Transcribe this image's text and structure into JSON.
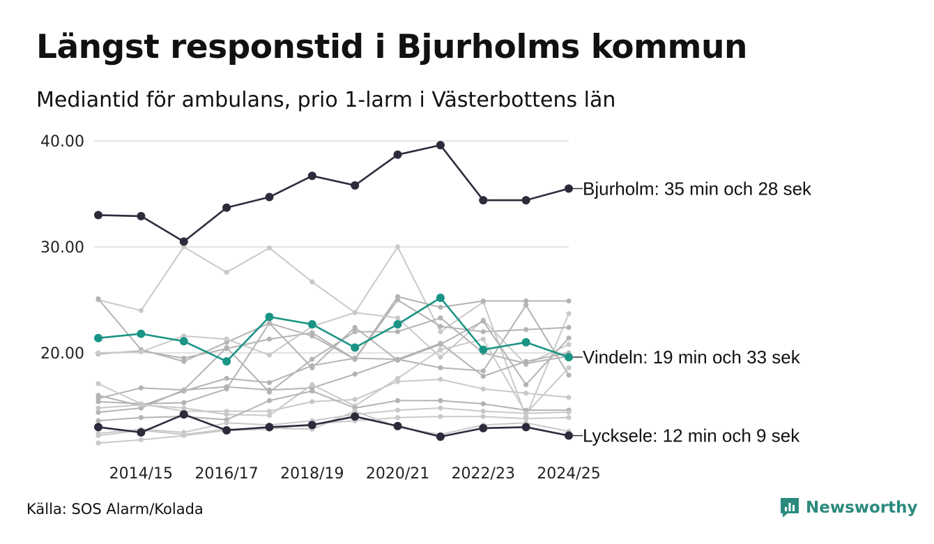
{
  "title": "Längst responstid i Bjurholms kommun",
  "subtitle": "Mediantid för ambulans, prio 1-larm i Västerbottens län",
  "source": "Källa: SOS Alarm/Kolada",
  "brand": "Newsworthy",
  "colors": {
    "highlight_dark": "#2d2b3b",
    "highlight_teal": "#1a9485",
    "background_lines": [
      "#b3b3b3",
      "#c9c9c9"
    ],
    "grid": "#e3e3e3",
    "brand": "#2b8a7e"
  },
  "chart_data": {
    "type": "line",
    "x": [
      "2013/14",
      "2014/15",
      "2015/16",
      "2016/17",
      "2017/18",
      "2018/19",
      "2019/20",
      "2020/21",
      "2021/22",
      "2022/23",
      "2023/24",
      "2024/25"
    ],
    "x_tick_labels": [
      "2014/15",
      "2016/17",
      "2018/19",
      "2020/21",
      "2022/23",
      "2024/25"
    ],
    "y_ticks": [
      "40.00",
      "30.00",
      "20.00"
    ],
    "y_tick_values": [
      40,
      30,
      20
    ],
    "ylim": [
      10.6,
      40.6
    ],
    "grid": true,
    "legend": "none",
    "highlighted_series": [
      {
        "name": "Bjurholm",
        "label": "Bjurholm: 35 min och 28 sek",
        "color": "#2d2b3b",
        "values": [
          33.0,
          32.9,
          30.5,
          33.7,
          34.7,
          36.7,
          35.8,
          38.7,
          39.6,
          34.4,
          34.4,
          35.5
        ]
      },
      {
        "name": "Vindeln",
        "label": "Vindeln: 19 min och 33 sek",
        "color": "#1a9485",
        "values": [
          21.4,
          21.8,
          21.1,
          19.2,
          23.4,
          22.7,
          20.5,
          22.7,
          25.2,
          20.3,
          21.0,
          19.6
        ]
      },
      {
        "name": "Lycksele",
        "label": "Lycksele: 12 min och 9 sek",
        "color": "#2d2b3b",
        "values": [
          13.0,
          12.5,
          14.2,
          12.7,
          13.0,
          13.2,
          14.0,
          13.1,
          12.1,
          12.9,
          13.0,
          12.2
        ]
      }
    ],
    "background_series": [
      {
        "color": "#c9c9c9",
        "values": [
          25.0,
          24.0,
          30.0,
          27.6,
          29.9,
          26.7,
          23.8,
          30.0,
          22.0,
          24.8,
          14.0,
          23.7
        ]
      },
      {
        "color": "#b3b3b3",
        "values": [
          25.1,
          20.3,
          19.2,
          21.0,
          22.8,
          21.6,
          19.4,
          25.3,
          24.3,
          24.9,
          24.9,
          24.9
        ]
      },
      {
        "color": "#b3b3b3",
        "values": [
          19.9,
          20.2,
          19.5,
          20.4,
          21.3,
          21.9,
          19.4,
          25.0,
          22.5,
          22.0,
          22.2,
          22.4
        ]
      },
      {
        "color": "#c9c9c9",
        "values": [
          20.0,
          20.1,
          21.6,
          21.3,
          19.8,
          22.5,
          23.8,
          23.3,
          19.6,
          23.1,
          18.9,
          20.8
        ]
      },
      {
        "color": "#b3b3b3",
        "values": [
          15.4,
          15.2,
          15.3,
          16.6,
          22.8,
          18.6,
          22.4,
          19.3,
          20.8,
          23.0,
          17.0,
          21.4
        ]
      },
      {
        "color": "#b3b3b3",
        "values": [
          16.0,
          15.0,
          16.4,
          17.6,
          17.2,
          18.8,
          19.5,
          19.4,
          18.6,
          18.3,
          24.5,
          17.9
        ]
      },
      {
        "color": "#b3b3b3",
        "values": [
          15.7,
          16.7,
          16.5,
          16.8,
          16.5,
          16.7,
          18.0,
          19.4,
          20.9,
          17.8,
          19.2,
          20.0
        ]
      },
      {
        "color": "#b3b3b3",
        "values": [
          14.4,
          14.8,
          16.5,
          20.5,
          16.3,
          19.4,
          22.0,
          22.0,
          23.3,
          20.0,
          19.0,
          19.7
        ]
      },
      {
        "color": "#c9c9c9",
        "values": [
          17.1,
          15.2,
          14.5,
          14.5,
          14.5,
          15.4,
          15.6,
          17.3,
          17.5,
          16.6,
          16.2,
          15.8
        ]
      },
      {
        "color": "#c9c9c9",
        "values": [
          14.8,
          15.1,
          14.8,
          14.2,
          14.1,
          17.0,
          15.0,
          17.6,
          20.3,
          21.3,
          14.3,
          18.6
        ]
      },
      {
        "color": "#b3b3b3",
        "values": [
          13.6,
          13.9,
          14.0,
          13.7,
          15.5,
          16.4,
          14.8,
          15.5,
          15.5,
          15.2,
          14.6,
          14.6
        ]
      },
      {
        "color": "#c9c9c9",
        "values": [
          12.4,
          12.8,
          12.5,
          13.4,
          13.2,
          13.6,
          14.2,
          14.6,
          14.8,
          14.5,
          14.3,
          14.4
        ]
      },
      {
        "color": "#c9c9c9",
        "values": [
          11.5,
          11.8,
          12.2,
          12.7,
          12.8,
          13.3,
          13.6,
          13.9,
          14.0,
          14.0,
          13.8,
          13.9
        ]
      },
      {
        "color": "#c9c9c9",
        "values": [
          12.2,
          12.7,
          12.3,
          12.8,
          12.9,
          12.8,
          14.5,
          13.0,
          12.3,
          13.2,
          13.4,
          12.6
        ]
      }
    ]
  }
}
